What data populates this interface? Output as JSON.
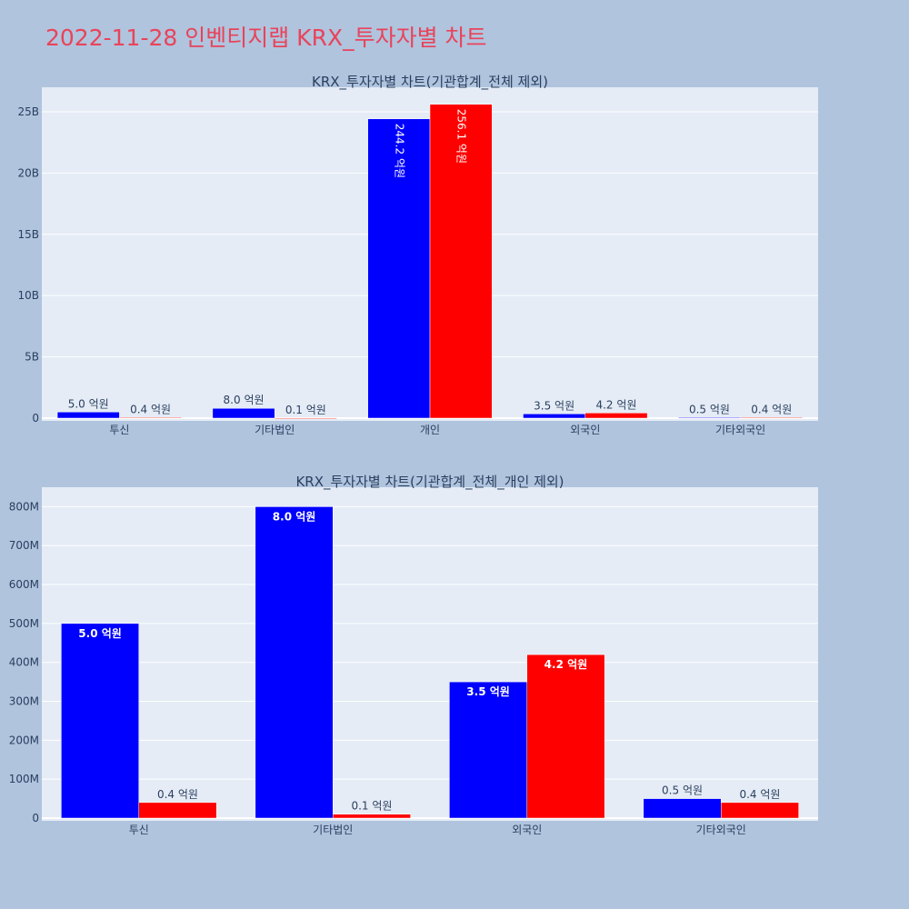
{
  "title": "2022-11-28 인벤티지랩 KRX_투자자별 차트",
  "colors": {
    "buy": "#0000ff",
    "sell": "#ff0000",
    "plot_bg": "#e5ecf6",
    "page_bg": "#b0c4de",
    "title": "#e8445a"
  },
  "chart_data": [
    {
      "type": "bar",
      "title": "KRX_투자자별 차트(기관합계_전체 제외)",
      "categories": [
        "투신",
        "기타법인",
        "개인",
        "외국인",
        "기타외국인"
      ],
      "series": [
        {
          "color": "#0000ff",
          "values": [
            500000000,
            800000000,
            24420000000,
            350000000,
            50000000
          ],
          "labels": [
            "5.0 억원",
            "8.0 억원",
            "244.2 억원",
            "3.5 억원",
            "0.5 억원"
          ]
        },
        {
          "color": "#ff0000",
          "values": [
            40000000,
            10000000,
            25610000000,
            420000000,
            40000000
          ],
          "labels": [
            "0.4 억원",
            "0.1 억원",
            "256.1 억원",
            "4.2 억원",
            "0.4 억원"
          ]
        }
      ],
      "ylim": [
        0,
        27000000000
      ],
      "yticks": [
        0,
        5000000000,
        10000000000,
        15000000000,
        20000000000,
        25000000000
      ],
      "ytick_labels": [
        "0",
        "5B",
        "10B",
        "15B",
        "20B",
        "25B"
      ],
      "grid": true
    },
    {
      "type": "bar",
      "title": "KRX_투자자별 차트(기관합계_전체_개인 제외)",
      "categories": [
        "투신",
        "기타법인",
        "외국인",
        "기타외국인"
      ],
      "series": [
        {
          "color": "#0000ff",
          "values": [
            500000000,
            800000000,
            350000000,
            50000000
          ],
          "labels": [
            "5.0 억원",
            "8.0 억원",
            "3.5 억원",
            "0.5 억원"
          ]
        },
        {
          "color": "#ff0000",
          "values": [
            40000000,
            10000000,
            420000000,
            40000000
          ],
          "labels": [
            "0.4 억원",
            "0.1 억원",
            "4.2 억원",
            "0.4 억원"
          ]
        }
      ],
      "ylim": [
        0,
        850000000
      ],
      "yticks": [
        0,
        100000000,
        200000000,
        300000000,
        400000000,
        500000000,
        600000000,
        700000000,
        800000000
      ],
      "ytick_labels": [
        "0",
        "100M",
        "200M",
        "300M",
        "400M",
        "500M",
        "600M",
        "700M",
        "800M"
      ],
      "grid": true
    }
  ]
}
